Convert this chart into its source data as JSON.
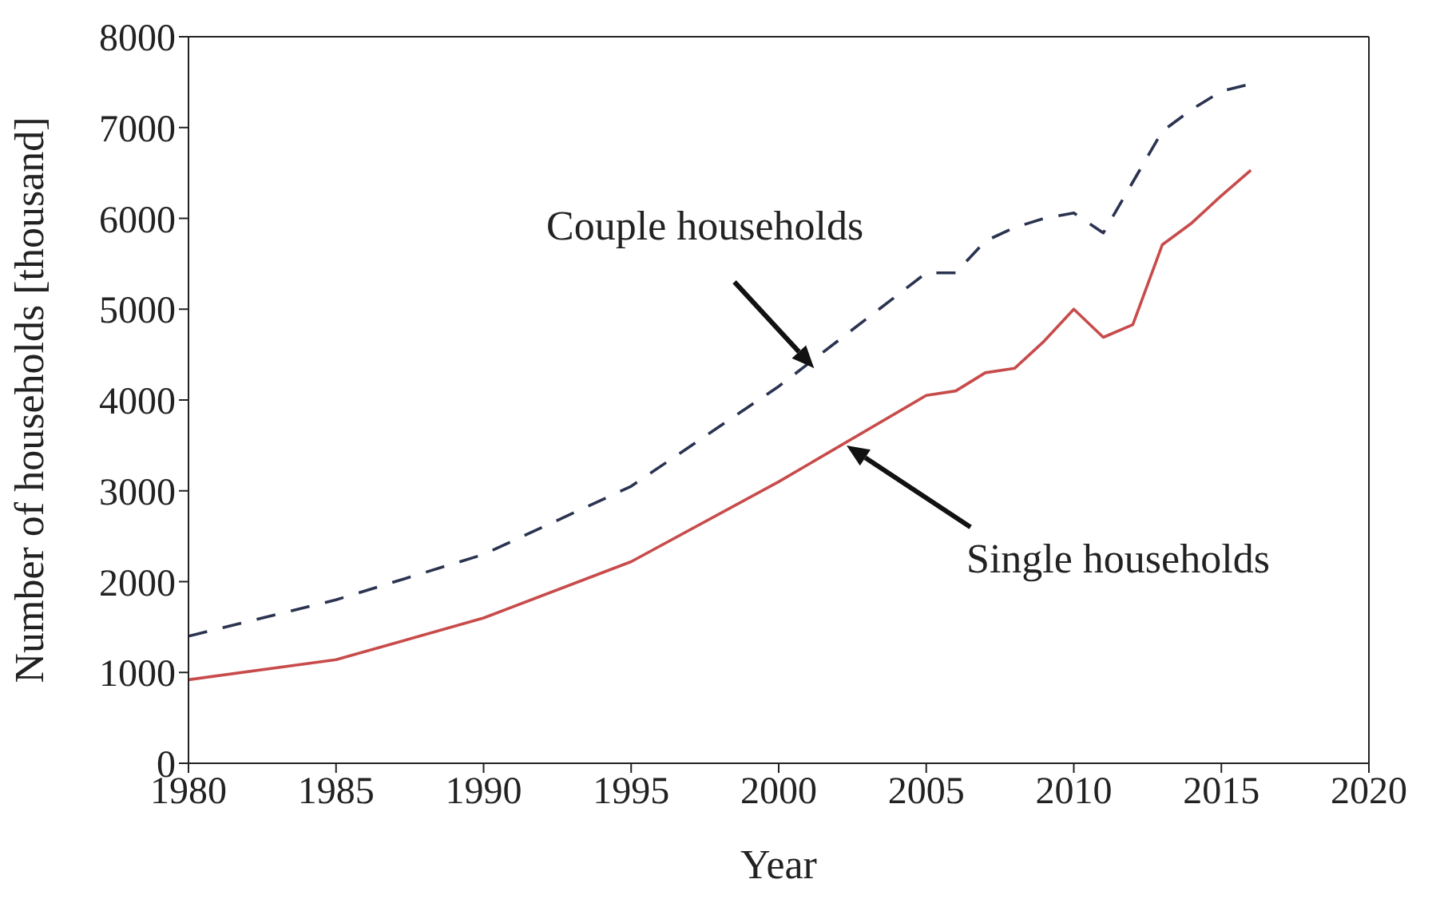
{
  "chart_data": {
    "type": "line",
    "xlabel": "Year",
    "ylabel": "Number of households [thousand]",
    "xlim": [
      1980,
      2020
    ],
    "xticks": [
      1980,
      1985,
      1990,
      1995,
      2000,
      2005,
      2010,
      2015,
      2020
    ],
    "ylim": [
      0,
      8000
    ],
    "yticks": [
      0,
      1000,
      2000,
      3000,
      4000,
      5000,
      6000,
      7000,
      8000
    ],
    "legend": false,
    "marker": "none",
    "annotations": [
      "Couple households",
      "Single households"
    ],
    "series": [
      {
        "color": "#2a3350",
        "line_style": "dashed",
        "x": [
          1980,
          1985,
          1990,
          1995,
          2000,
          2005,
          2006,
          2007,
          2008,
          2009,
          2010,
          2011,
          2012,
          2013,
          2014,
          2015,
          2016
        ],
        "values": [
          1400,
          1800,
          2300,
          3050,
          4150,
          5400,
          5400,
          5750,
          5900,
          6000,
          6060,
          5840,
          6400,
          6960,
          7200,
          7400,
          7480
        ]
      },
      {
        "color": "#c84b4b",
        "line_style": "solid",
        "x": [
          1980,
          1985,
          1990,
          1995,
          2000,
          2005,
          2006,
          2007,
          2008,
          2009,
          2010,
          2011,
          2012,
          2013,
          2014,
          2015,
          2016
        ],
        "values": [
          920,
          1140,
          1600,
          2220,
          3100,
          4050,
          4100,
          4300,
          4350,
          4650,
          5000,
          4690,
          4830,
          5710,
          5950,
          6250,
          6530
        ]
      }
    ]
  }
}
